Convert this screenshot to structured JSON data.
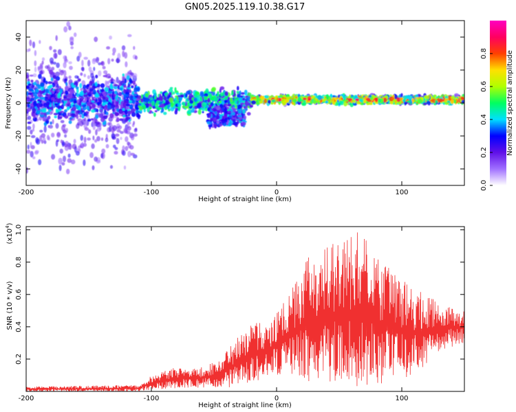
{
  "title": "GN05.2025.119.10.38.G17",
  "chart_data": [
    {
      "type": "heatmap",
      "xlabel": "Height of straight line (km)",
      "ylabel": "Frequency (Hz)",
      "xlim": [
        -200,
        150
      ],
      "ylim": [
        -50,
        50
      ],
      "x_ticks": [
        -200,
        -100,
        0,
        100
      ],
      "y_ticks": [
        -40,
        -20,
        0,
        20,
        40
      ],
      "x_tick_labels": [
        "-200",
        "-100",
        "0",
        "100"
      ],
      "y_tick_labels": [
        "-40",
        "-20",
        "0",
        "20",
        "40"
      ],
      "colorbar": {
        "label": "Normalized spectral amplitude",
        "range": [
          0,
          1
        ],
        "ticks": [
          0.0,
          0.2,
          0.4,
          0.6,
          0.8
        ],
        "tick_labels": [
          "0.0",
          "0.2",
          "0.4",
          "0.6",
          "0.8"
        ],
        "colors": [
          "#ffffff",
          "#a070ff",
          "#6010e8",
          "#0000ff",
          "#00e0ff",
          "#00ff60",
          "#b0ff00",
          "#ffe000",
          "#ff4000",
          "#ff0060",
          "#ff00c0"
        ]
      },
      "features": [
        {
          "x_range": [
            -200,
            -112
          ],
          "freq_center": 0,
          "freq_spread": 40,
          "amplitude": 0.2
        },
        {
          "x_range": [
            -200,
            -110
          ],
          "freq_center": 2,
          "freq_spread": 12,
          "amplitude": 0.3
        },
        {
          "x_range": [
            -110,
            -20
          ],
          "freq_center": 1,
          "freq_spread": 6,
          "amplitude": 0.4
        },
        {
          "x_range": [
            -55,
            -25
          ],
          "freq_center": -8,
          "freq_spread": 6,
          "amplitude": 0.3
        },
        {
          "x_range": [
            -20,
            150
          ],
          "freq_center": 2,
          "freq_spread": 2,
          "amplitude": 0.8
        }
      ],
      "grid": false
    },
    {
      "type": "line",
      "xlabel": "Height of straight line (km)",
      "ylabel": "SNR (10 * v/v)",
      "y_multiplier": "(x10",
      "y_exponent": "4",
      "xlim": [
        -200,
        150
      ],
      "ylim": [
        0,
        1.02
      ],
      "x_ticks": [
        -200,
        -100,
        0,
        100
      ],
      "y_ticks": [
        0.2,
        0.4,
        0.6,
        0.8,
        1.0
      ],
      "x_tick_labels": [
        "-200",
        "-100",
        "0",
        "100"
      ],
      "y_tick_labels": [
        "0.2",
        "0.4",
        "0.6",
        "0.8",
        "1.0"
      ],
      "series": [
        {
          "color": "#f03030",
          "envelope": [
            {
              "x": -200,
              "min": 0.0,
              "max": 0.03
            },
            {
              "x": -110,
              "min": 0.0,
              "max": 0.04
            },
            {
              "x": -100,
              "min": 0.01,
              "max": 0.1
            },
            {
              "x": -80,
              "min": 0.02,
              "max": 0.15
            },
            {
              "x": -60,
              "min": 0.02,
              "max": 0.15
            },
            {
              "x": -45,
              "min": 0.02,
              "max": 0.2
            },
            {
              "x": -30,
              "min": 0.03,
              "max": 0.35
            },
            {
              "x": -20,
              "min": 0.05,
              "max": 0.42
            },
            {
              "x": -5,
              "min": 0.08,
              "max": 0.45
            },
            {
              "x": 10,
              "min": 0.1,
              "max": 0.6
            },
            {
              "x": 25,
              "min": 0.05,
              "max": 0.85
            },
            {
              "x": 40,
              "min": 0.03,
              "max": 0.9
            },
            {
              "x": 65,
              "min": 0.03,
              "max": 1.0
            },
            {
              "x": 85,
              "min": 0.05,
              "max": 0.8
            },
            {
              "x": 110,
              "min": 0.1,
              "max": 0.65
            },
            {
              "x": 130,
              "min": 0.25,
              "max": 0.55
            },
            {
              "x": 150,
              "min": 0.3,
              "max": 0.5
            }
          ]
        }
      ],
      "grid": false
    }
  ]
}
